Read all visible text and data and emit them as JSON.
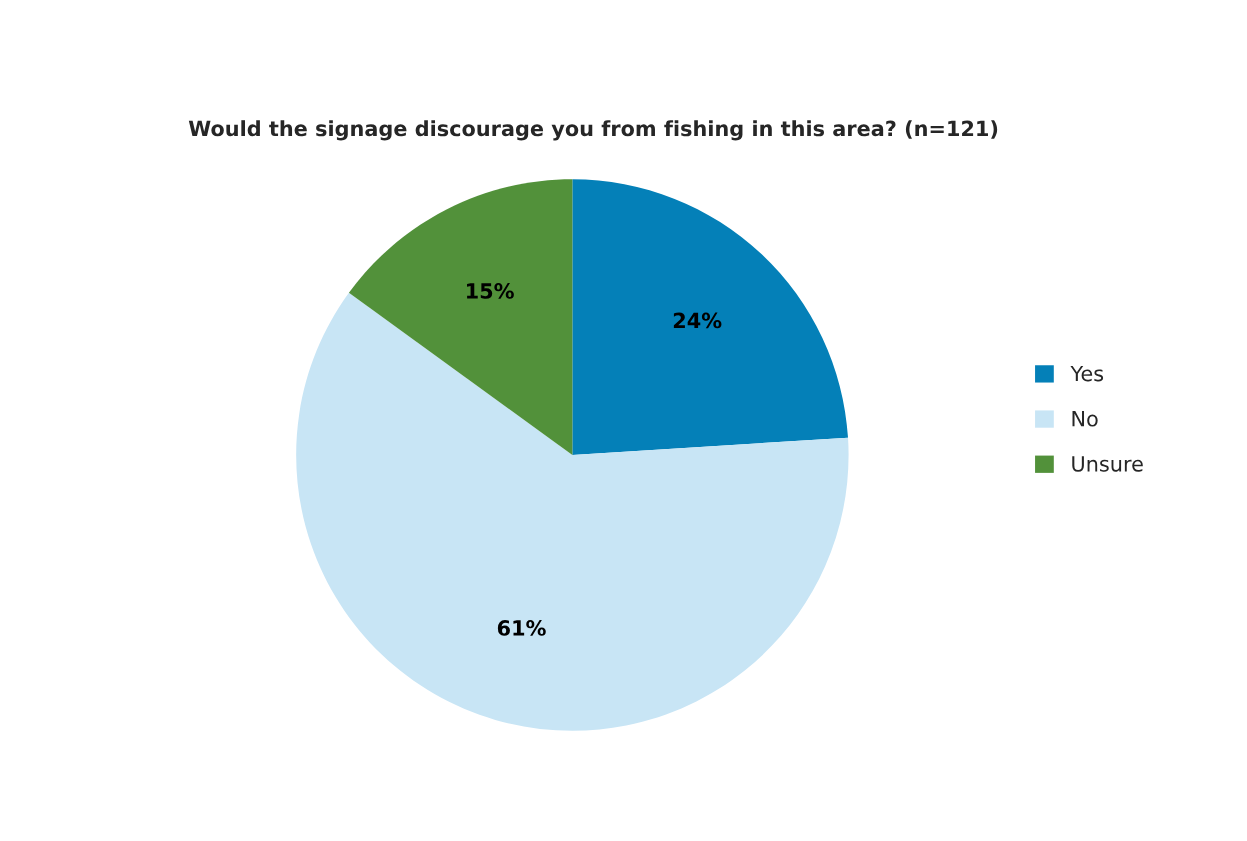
{
  "chart_data": {
    "type": "pie",
    "title": "Would the signage discourage you from fishing in this area? (n=121)",
    "categories": [
      "Yes",
      "No",
      "Unsure"
    ],
    "values": [
      24,
      61,
      15
    ],
    "colors": [
      "#0480b8",
      "#c8e5f5",
      "#52913a"
    ],
    "value_labels": [
      "24%",
      "61%",
      "15%"
    ],
    "legend": "right"
  }
}
